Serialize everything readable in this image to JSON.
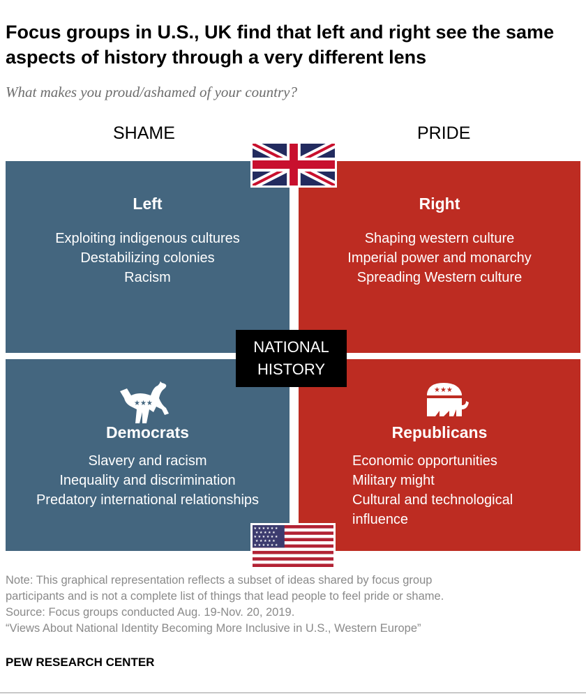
{
  "title": "Focus groups in U.S., UK find that left and right see the same aspects of history through a very different lens",
  "subtitle": "What makes you proud/ashamed of your country?",
  "columns": {
    "shame": "SHAME",
    "pride": "PRIDE"
  },
  "center_label": {
    "line1": "NATIONAL",
    "line2": "HISTORY"
  },
  "colors": {
    "shame": "#44667f",
    "pride": "#bd2c22",
    "center": "#000000"
  },
  "quadrants": {
    "uk_left": {
      "heading": "Left",
      "items": [
        "Exploiting indigenous cultures",
        "Destabilizing colonies",
        "Racism"
      ]
    },
    "uk_right": {
      "heading": "Right",
      "items": [
        "Shaping western culture",
        "Imperial power and monarchy",
        "Spreading Western culture"
      ]
    },
    "us_dem": {
      "heading": "Democrats",
      "icon": "donkey-icon",
      "items": [
        "Slavery and racism",
        "Inequality and discrimination",
        "Predatory international relationships"
      ]
    },
    "us_rep": {
      "heading": "Republicans",
      "icon": "elephant-icon",
      "items": [
        "Economic opportunities",
        "Military might",
        "Cultural and technological",
        "influence"
      ]
    }
  },
  "flags": {
    "top": "uk-flag-icon",
    "bottom": "us-flag-icon"
  },
  "notes": [
    "Note: This graphical representation reflects a subset of ideas shared by focus group",
    "participants and is not a complete list of things that lead people to feel pride or shame.",
    "Source: Focus groups conducted Aug. 19-Nov. 20, 2019.",
    "“Views About National Identity Becoming More Inclusive in U.S., Western Europe”"
  ],
  "brand": "PEW RESEARCH CENTER"
}
